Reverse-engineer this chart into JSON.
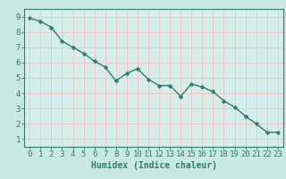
{
  "x": [
    0,
    1,
    2,
    3,
    4,
    5,
    6,
    7,
    8,
    9,
    10,
    11,
    12,
    13,
    14,
    15,
    16,
    17,
    18,
    19,
    20,
    21,
    22,
    23
  ],
  "y": [
    8.9,
    8.7,
    8.3,
    7.4,
    7.0,
    6.6,
    6.1,
    5.7,
    4.8,
    5.3,
    5.6,
    4.9,
    4.5,
    4.5,
    3.8,
    4.6,
    4.4,
    4.1,
    3.5,
    3.1,
    2.5,
    2.0,
    1.45,
    1.45
  ],
  "line_color": "#2e7d6e",
  "marker_color": "#2e7d6e",
  "bg_color": "#c8e8e0",
  "plot_bg_color": "#d6eeea",
  "grid_color": "#f0c8c8",
  "axis_color": "#2e7d6e",
  "xlabel": "Humidex (Indice chaleur)",
  "xlim": [
    -0.5,
    23.5
  ],
  "ylim": [
    0.5,
    9.5
  ],
  "yticks": [
    1,
    2,
    3,
    4,
    5,
    6,
    7,
    8,
    9
  ],
  "xticks": [
    0,
    1,
    2,
    3,
    4,
    5,
    6,
    7,
    8,
    9,
    10,
    11,
    12,
    13,
    14,
    15,
    16,
    17,
    18,
    19,
    20,
    21,
    22,
    23
  ],
  "line_width": 1.0,
  "marker_size": 2.5,
  "xlabel_fontsize": 7,
  "tick_fontsize": 6.5
}
